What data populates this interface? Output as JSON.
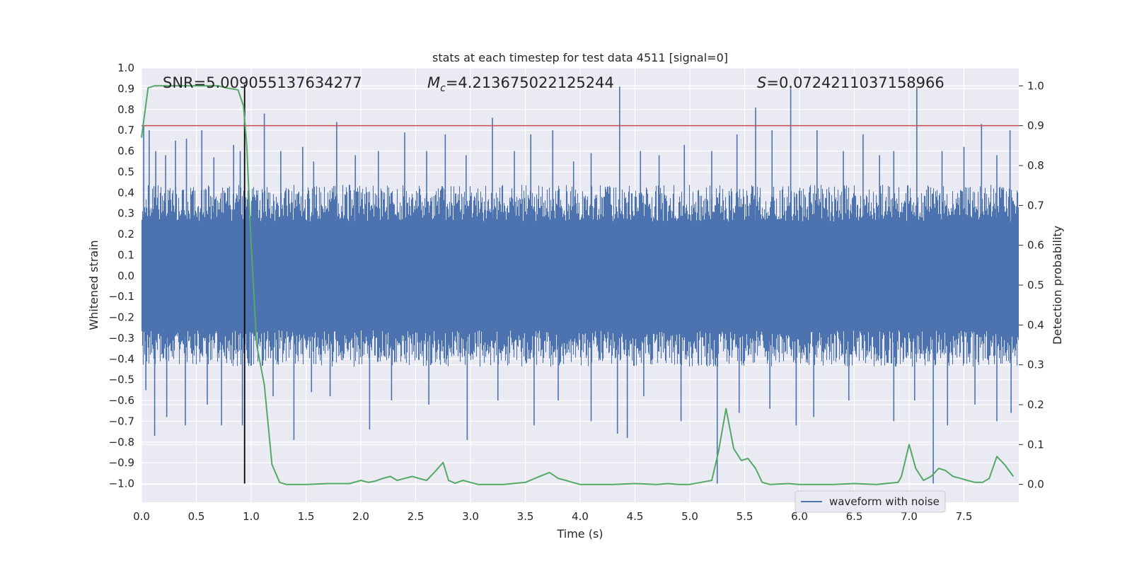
{
  "chart_data": {
    "type": "line",
    "title": "stats at each timestep for test data 4511 [signal=0]",
    "xlabel": "Time (s)",
    "ylabel": "Whitened strain",
    "y2label": "Detection probability",
    "xlim": [
      0.0,
      8.0
    ],
    "ylim": [
      -1.09,
      1.0
    ],
    "y2lim": [
      -0.045,
      1.045
    ],
    "xticks": [
      "0.0",
      "0.5",
      "1.0",
      "1.5",
      "2.0",
      "2.5",
      "3.0",
      "3.5",
      "4.0",
      "4.5",
      "5.0",
      "5.5",
      "6.0",
      "6.5",
      "7.0",
      "7.5"
    ],
    "yticks": [
      "1.0",
      "0.9",
      "0.8",
      "0.7",
      "0.6",
      "0.5",
      "0.4",
      "0.3",
      "0.2",
      "0.1",
      "0.0",
      "−0.1",
      "−0.2",
      "−0.3",
      "−0.4",
      "−0.5",
      "−0.6",
      "−0.7",
      "−0.8",
      "−0.9",
      "−1.0"
    ],
    "y2ticks": [
      "1.0",
      "0.9",
      "0.8",
      "0.7",
      "0.6",
      "0.5",
      "0.4",
      "0.3",
      "0.2",
      "0.1",
      "0.0"
    ],
    "grid": true,
    "legend": {
      "entries": [
        "waveform with noise"
      ],
      "placement": "lower-right"
    },
    "annotations": {
      "snr": "SNR=5.009055137634277",
      "mc_symbol": "M",
      "mc_subscript": "c",
      "mc_value": "=4.213675022125244",
      "s_symbol": "S",
      "s_value": "=0.0724211037158966"
    },
    "series": [
      {
        "name": "waveform with noise",
        "axis": "left",
        "color": "#4c72b0",
        "envelope_upper": 0.35,
        "envelope_lower": -0.35,
        "spikes_upper": [
          {
            "t": 0.02,
            "v": 0.72
          },
          {
            "t": 0.07,
            "v": 0.7
          },
          {
            "t": 0.13,
            "v": 0.6
          },
          {
            "t": 0.22,
            "v": 0.58
          },
          {
            "t": 0.31,
            "v": 0.65
          },
          {
            "t": 0.41,
            "v": 0.66
          },
          {
            "t": 0.55,
            "v": 0.7
          },
          {
            "t": 0.66,
            "v": 0.57
          },
          {
            "t": 0.84,
            "v": 0.63
          },
          {
            "t": 0.9,
            "v": 0.6
          },
          {
            "t": 1.12,
            "v": 0.78
          },
          {
            "t": 1.27,
            "v": 0.6
          },
          {
            "t": 1.47,
            "v": 0.62
          },
          {
            "t": 1.57,
            "v": 0.55
          },
          {
            "t": 1.78,
            "v": 0.74
          },
          {
            "t": 1.95,
            "v": 0.58
          },
          {
            "t": 2.16,
            "v": 0.6
          },
          {
            "t": 2.4,
            "v": 0.69
          },
          {
            "t": 2.6,
            "v": 0.6
          },
          {
            "t": 2.77,
            "v": 0.68
          },
          {
            "t": 2.96,
            "v": 0.58
          },
          {
            "t": 3.2,
            "v": 0.76
          },
          {
            "t": 3.4,
            "v": 0.6
          },
          {
            "t": 3.55,
            "v": 0.68
          },
          {
            "t": 3.75,
            "v": 0.7
          },
          {
            "t": 3.94,
            "v": 0.55
          },
          {
            "t": 4.1,
            "v": 0.59
          },
          {
            "t": 4.36,
            "v": 0.91
          },
          {
            "t": 4.55,
            "v": 0.6
          },
          {
            "t": 4.72,
            "v": 0.58
          },
          {
            "t": 4.95,
            "v": 0.63
          },
          {
            "t": 5.2,
            "v": 0.6
          },
          {
            "t": 5.43,
            "v": 0.68
          },
          {
            "t": 5.6,
            "v": 0.81
          },
          {
            "t": 5.75,
            "v": 0.7
          },
          {
            "t": 5.92,
            "v": 0.91
          },
          {
            "t": 6.16,
            "v": 0.7
          },
          {
            "t": 6.4,
            "v": 0.6
          },
          {
            "t": 6.58,
            "v": 0.68
          },
          {
            "t": 6.73,
            "v": 0.58
          },
          {
            "t": 6.86,
            "v": 0.6
          },
          {
            "t": 7.07,
            "v": 0.91
          },
          {
            "t": 7.3,
            "v": 0.6
          },
          {
            "t": 7.5,
            "v": 0.62
          },
          {
            "t": 7.66,
            "v": 0.73
          },
          {
            "t": 7.8,
            "v": 0.58
          },
          {
            "t": 7.92,
            "v": 0.7
          }
        ],
        "spikes_lower": [
          {
            "t": 0.04,
            "v": -0.55
          },
          {
            "t": 0.12,
            "v": -0.77
          },
          {
            "t": 0.23,
            "v": -0.68
          },
          {
            "t": 0.4,
            "v": -0.72
          },
          {
            "t": 0.6,
            "v": -0.62
          },
          {
            "t": 0.73,
            "v": -0.72
          },
          {
            "t": 0.92,
            "v": -0.72
          },
          {
            "t": 1.2,
            "v": -0.58
          },
          {
            "t": 1.39,
            "v": -0.79
          },
          {
            "t": 1.55,
            "v": -0.56
          },
          {
            "t": 1.72,
            "v": -0.58
          },
          {
            "t": 2.08,
            "v": -0.74
          },
          {
            "t": 2.28,
            "v": -0.6
          },
          {
            "t": 2.62,
            "v": -0.62
          },
          {
            "t": 2.97,
            "v": -0.79
          },
          {
            "t": 3.25,
            "v": -0.6
          },
          {
            "t": 3.58,
            "v": -0.72
          },
          {
            "t": 3.8,
            "v": -0.6
          },
          {
            "t": 4.1,
            "v": -0.7
          },
          {
            "t": 4.34,
            "v": -0.76
          },
          {
            "t": 4.43,
            "v": -0.78
          },
          {
            "t": 4.58,
            "v": -0.58
          },
          {
            "t": 4.92,
            "v": -0.7
          },
          {
            "t": 5.25,
            "v": -1.0
          },
          {
            "t": 5.45,
            "v": -0.66
          },
          {
            "t": 5.73,
            "v": -0.64
          },
          {
            "t": 5.97,
            "v": -0.72
          },
          {
            "t": 6.13,
            "v": -0.68
          },
          {
            "t": 6.45,
            "v": -0.6
          },
          {
            "t": 6.86,
            "v": -0.7
          },
          {
            "t": 7.05,
            "v": -0.6
          },
          {
            "t": 7.22,
            "v": -1.0
          },
          {
            "t": 7.35,
            "v": -0.72
          },
          {
            "t": 7.6,
            "v": -0.62
          },
          {
            "t": 7.8,
            "v": -0.7
          },
          {
            "t": 7.93,
            "v": -0.66
          }
        ]
      },
      {
        "name": "detection probability",
        "axis": "right",
        "color": "#55a868",
        "x": [
          0.0,
          0.06,
          0.12,
          0.3,
          0.5,
          0.7,
          0.77,
          0.88,
          0.93,
          0.96,
          1.0,
          1.05,
          1.12,
          1.19,
          1.26,
          1.32,
          1.5,
          1.7,
          1.9,
          2.0,
          2.07,
          2.13,
          2.2,
          2.27,
          2.33,
          2.4,
          2.47,
          2.53,
          2.6,
          2.67,
          2.75,
          2.8,
          2.86,
          2.93,
          3.0,
          3.07,
          3.13,
          3.3,
          3.5,
          3.63,
          3.72,
          3.8,
          3.87,
          3.93,
          4.0,
          4.07,
          4.13,
          4.3,
          4.5,
          4.7,
          4.8,
          4.9,
          5.0,
          5.1,
          5.2,
          5.26,
          5.33,
          5.4,
          5.47,
          5.53,
          5.6,
          5.66,
          5.73,
          5.9,
          6.0,
          6.13,
          6.3,
          6.5,
          6.7,
          6.9,
          6.93,
          7.0,
          7.06,
          7.13,
          7.2,
          7.27,
          7.33,
          7.4,
          7.47,
          7.53,
          7.6,
          7.67,
          7.73,
          7.8,
          7.87,
          7.95
        ],
        "values": [
          0.87,
          0.995,
          1.0,
          1.0,
          1.0,
          1.0,
          0.995,
          0.99,
          0.95,
          0.85,
          0.6,
          0.35,
          0.25,
          0.05,
          0.005,
          0.0,
          0.0,
          0.002,
          0.002,
          0.01,
          0.005,
          0.008,
          0.015,
          0.02,
          0.01,
          0.015,
          0.02,
          0.015,
          0.01,
          0.03,
          0.055,
          0.01,
          0.003,
          0.01,
          0.005,
          0.0,
          0.0,
          0.0,
          0.005,
          0.02,
          0.03,
          0.015,
          0.01,
          0.005,
          0.0,
          0.0,
          0.0,
          0.0,
          0.002,
          0.0,
          0.002,
          0.0,
          0.0,
          0.005,
          0.01,
          0.08,
          0.19,
          0.09,
          0.06,
          0.065,
          0.04,
          0.005,
          0.0,
          0.002,
          0.0,
          0.0,
          0.0,
          0.002,
          0.0,
          0.005,
          0.02,
          0.1,
          0.04,
          0.01,
          0.02,
          0.04,
          0.035,
          0.02,
          0.015,
          0.01,
          0.005,
          0.005,
          0.015,
          0.07,
          0.05,
          0.02
        ]
      },
      {
        "name": "threshold",
        "axis": "right",
        "color": "#c44e52",
        "value": 0.9
      },
      {
        "name": "marker",
        "axis": "left",
        "color": "#000000",
        "t": 0.94,
        "from": -1.0,
        "to": 0.92
      }
    ]
  }
}
